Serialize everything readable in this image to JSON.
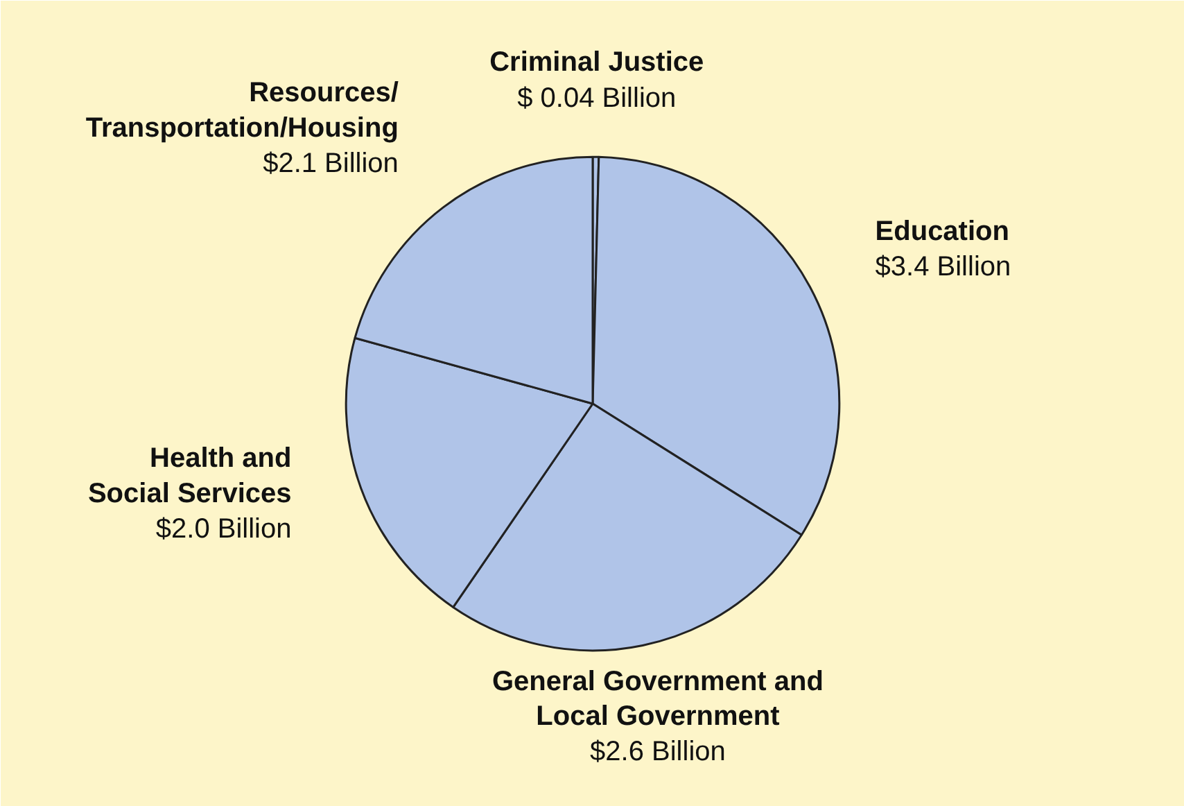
{
  "chart_data": {
    "type": "pie",
    "categories": [
      "Criminal Justice",
      "Education",
      "General Government and\nLocal Government",
      "Health and\nSocial Services",
      "Resources/\nTransportation/Housing"
    ],
    "values": [
      0.04,
      3.4,
      2.6,
      2.0,
      2.1
    ],
    "value_labels": [
      "$ 0.04 Billion",
      "$3.4 Billion",
      "$2.6 Billion",
      "$2.0 Billion",
      "$2.1 Billion"
    ],
    "colors": [
      "#b0c4e8",
      "#b0c4e8",
      "#b0c4e8",
      "#b0c4e8",
      "#b0c4e8"
    ]
  }
}
